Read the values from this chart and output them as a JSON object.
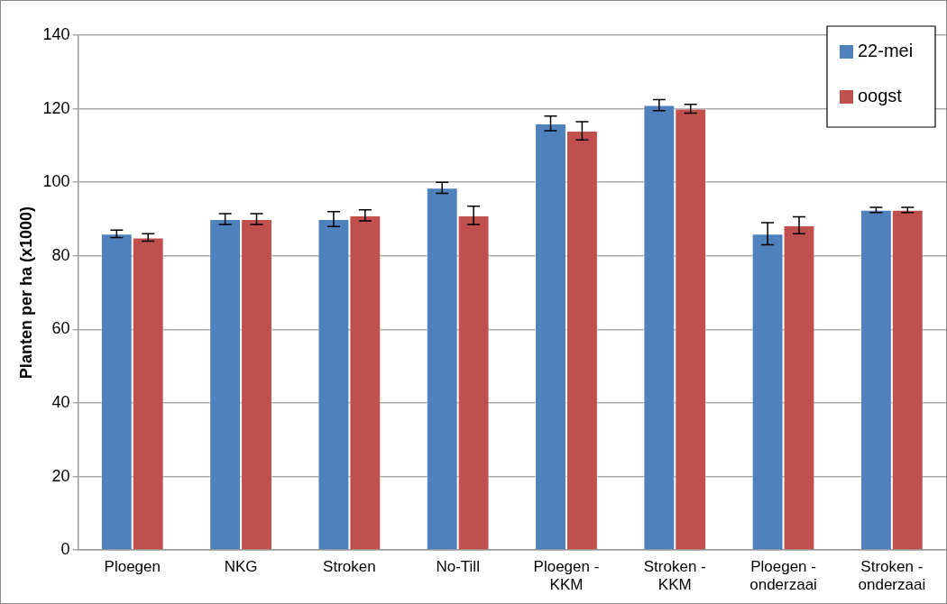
{
  "chart_data": {
    "type": "bar",
    "ylabel": "Planten per ha (x1000)",
    "categories": [
      "Ploegen",
      "NKG",
      "Stroken",
      "No-Till",
      "Ploegen -\nKKM",
      "Stroken -\nKKM",
      "Ploegen -\nonderzaai",
      "Stroken -\nonderzaai"
    ],
    "series": [
      {
        "name": "22-mei",
        "color": "#4f81bd",
        "values": [
          86,
          90,
          90,
          98.5,
          116,
          121,
          86,
          92.5
        ],
        "errors": [
          1,
          1.5,
          2,
          1.5,
          2,
          1.5,
          3,
          0.7
        ]
      },
      {
        "name": "oogst",
        "color": "#c0504d",
        "values": [
          85,
          90,
          91,
          91,
          114,
          120,
          88.3,
          92.5
        ],
        "errors": [
          1,
          1.5,
          1.5,
          2.5,
          2.5,
          1.2,
          2.3,
          0.7
        ]
      }
    ],
    "ylim": [
      0,
      140
    ],
    "yticks": [
      0,
      20,
      40,
      60,
      80,
      100,
      120,
      140
    ],
    "grid": "y",
    "legend": "top right"
  }
}
